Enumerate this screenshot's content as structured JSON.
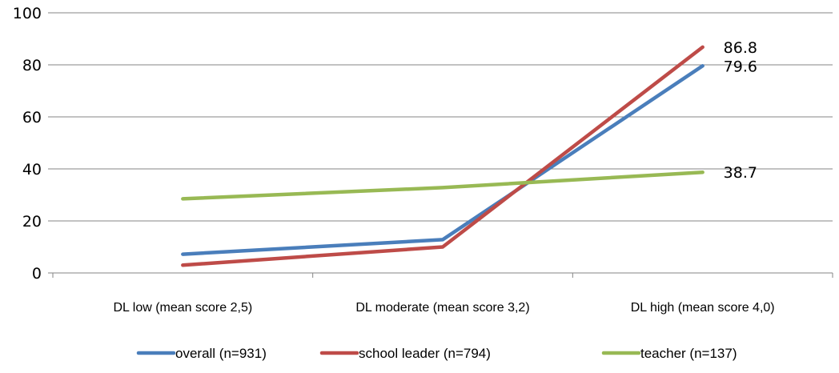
{
  "chart_data": {
    "type": "line",
    "title": "",
    "xlabel": "",
    "ylabel": "",
    "ylim": [
      0,
      100
    ],
    "yticks": [
      0,
      20,
      40,
      60,
      80,
      100
    ],
    "grid": true,
    "legend_position": "bottom",
    "categories": [
      "DL low (mean score 2,5)",
      "DL moderate (mean score 3,2)",
      "DL high (mean score 4,0)"
    ],
    "series": [
      {
        "name": "overall (n=931)",
        "color": "#4a7ebb",
        "values": [
          7.2,
          12.8,
          79.6
        ],
        "labels": [
          "",
          "",
          "79.6"
        ]
      },
      {
        "name": "school leader (n=794)",
        "color": "#be4b48",
        "values": [
          3.0,
          10.0,
          86.8
        ],
        "labels": [
          "",
          "",
          "86.8"
        ]
      },
      {
        "name": "teacher (n=137)",
        "color": "#98b954",
        "values": [
          28.5,
          32.8,
          38.7
        ],
        "labels": [
          "",
          "",
          "38.7"
        ]
      }
    ]
  }
}
